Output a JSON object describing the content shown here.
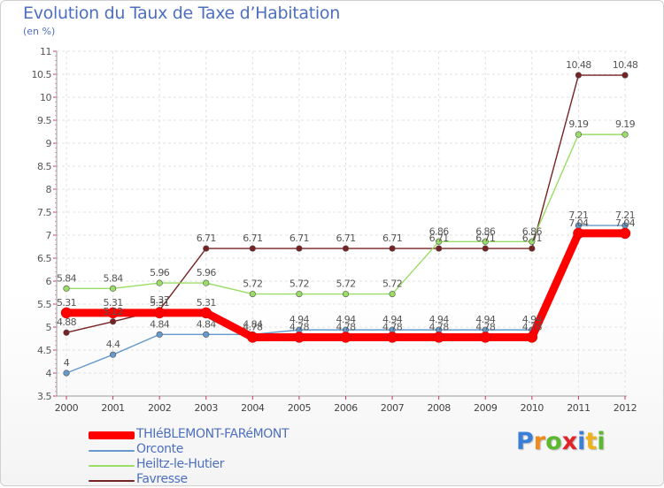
{
  "chart_data": {
    "type": "line",
    "title": "Evolution du Taux de Taxe d’Habitation",
    "unit_label": "(en %)",
    "xlabel": "",
    "ylabel": "",
    "categories": [
      "2000",
      "2001",
      "2002",
      "2003",
      "2004",
      "2005",
      "2006",
      "2007",
      "2008",
      "2009",
      "2010",
      "2011",
      "2012"
    ],
    "ylim": [
      3.5,
      11
    ],
    "yticks": [
      "3.5",
      "4",
      "4.5",
      "5",
      "5.5",
      "6",
      "6.5",
      "7",
      "7.5",
      "8",
      "8.5",
      "9",
      "9.5",
      "10",
      "10.5",
      "11"
    ],
    "grid": true,
    "legend_position": "bottom-left",
    "series": [
      {
        "name": "THIéBLEMONT-FARéMONT",
        "color": "#ff0000",
        "values": [
          5.31,
          5.31,
          5.31,
          5.31,
          4.78,
          4.78,
          4.78,
          4.78,
          4.78,
          4.78,
          4.78,
          7.04,
          7.04
        ],
        "labels": [
          "5.31",
          "5.31",
          "5.31",
          "5.31",
          "4.78",
          "4.78",
          "4.78",
          "4.78",
          "4.78",
          "4.78",
          "4.78",
          "7.04",
          "7.04"
        ]
      },
      {
        "name": "Orconte",
        "color": "#6699cc",
        "values": [
          4.0,
          4.4,
          4.84,
          4.84,
          4.84,
          4.94,
          4.94,
          4.94,
          4.94,
          4.94,
          4.94,
          7.21,
          7.21
        ],
        "labels": [
          "4",
          "4.4",
          "4.84",
          "4.84",
          "4.84",
          "4.94",
          "4.94",
          "4.94",
          "4.94",
          "4.94",
          "4.94",
          "7.21",
          "7.21"
        ]
      },
      {
        "name": "Heiltz-le-Hutier",
        "color": "#99dd66",
        "values": [
          5.84,
          5.84,
          5.96,
          5.96,
          5.72,
          5.72,
          5.72,
          5.72,
          6.86,
          6.86,
          6.86,
          9.19,
          9.19
        ],
        "labels": [
          "5.84",
          "5.84",
          "5.96",
          "5.96",
          "5.72",
          "5.72",
          "5.72",
          "5.72",
          "6.86",
          "6.86",
          "6.86",
          "9.19",
          "9.19"
        ]
      },
      {
        "name": "Favresse",
        "color": "#772222",
        "values": [
          4.88,
          5.12,
          5.37,
          6.71,
          6.71,
          6.71,
          6.71,
          6.71,
          6.71,
          6.71,
          6.71,
          10.48,
          10.48
        ],
        "labels": [
          "4.88",
          "5.12",
          "5.37",
          "6.71",
          "6.71",
          "6.71",
          "6.71",
          "6.71",
          "6.71",
          "6.71",
          "6.71",
          "10.48",
          "10.48"
        ]
      }
    ]
  },
  "branding": {
    "logo_letters": [
      "P",
      "r",
      "o",
      "x",
      "i",
      "t",
      "i"
    ],
    "logo_colors": [
      "#3a7ed8",
      "#f08a1c",
      "#5cb82e",
      "#e0242a",
      "#3a7ed8",
      "#f0b21c",
      "#5cb82e"
    ]
  }
}
